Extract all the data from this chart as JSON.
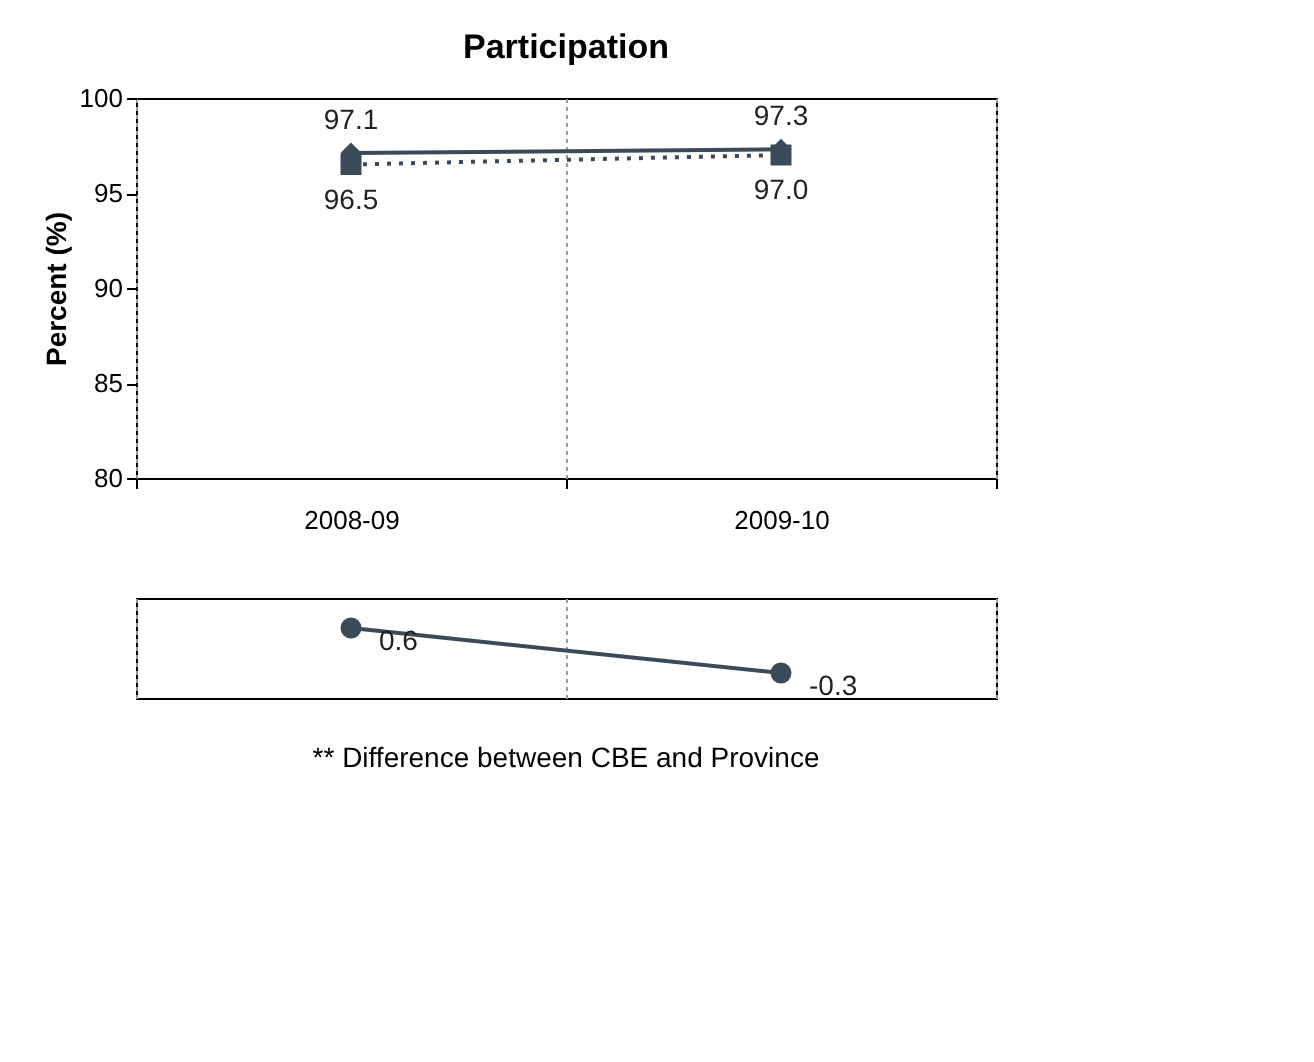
{
  "chart_data": [
    {
      "type": "line",
      "title": "Participation",
      "ylabel": "Percent (%)",
      "categories": [
        "2008-09",
        "2009-10"
      ],
      "series": [
        {
          "color": "#3b4a58",
          "values": [
            97.1,
            97.3
          ],
          "value_labels": [
            "97.1",
            "97.3"
          ],
          "marker": "diamond",
          "line_style": "solid"
        },
        {
          "color": "#3b4a58",
          "values": [
            96.5,
            97.0
          ],
          "value_labels": [
            "96.5",
            "97.0"
          ],
          "marker": "square",
          "line_style": "dotted"
        }
      ],
      "ylim": [
        80,
        100
      ],
      "yticks": [
        80,
        85,
        90,
        95,
        100
      ],
      "grid": "x"
    },
    {
      "type": "line",
      "categories": [
        "2008-09",
        "2009-10"
      ],
      "series": [
        {
          "color": "#3b4a58",
          "values": [
            0.6,
            -0.3
          ],
          "value_labels": [
            "0.6",
            "-0.3"
          ],
          "marker": "circle",
          "line_style": "solid"
        }
      ],
      "tick_labels": false,
      "grid": "x",
      "annotations": [
        "** Difference between CBE and Province"
      ]
    }
  ]
}
